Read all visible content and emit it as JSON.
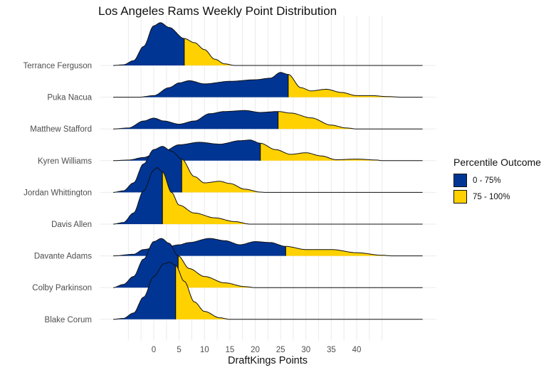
{
  "chart_data": {
    "type": "ridgeline",
    "title": "Los Angeles Rams Weekly Point Distribution",
    "xlabel": "DraftKings Points",
    "ylabel": "",
    "xlim": [
      -8,
      53
    ],
    "x_ticks": [
      0,
      5,
      10,
      15,
      20,
      25,
      30,
      35,
      40
    ],
    "x_tick_labels": [
      "0",
      "5",
      "10",
      "15",
      "20",
      "25",
      "30",
      "35",
      "40"
    ],
    "minor_grid_step": 2.5,
    "grid_range": [
      -5,
      45
    ],
    "grid": true,
    "legend": {
      "title": "Percentile Outcome",
      "position": "right",
      "entries": [
        {
          "label": "0 - 75%",
          "color": "#003594"
        },
        {
          "label": "75 - 100%",
          "color": "#FFD100"
        }
      ]
    },
    "colors": {
      "low": "#003594",
      "high": "#FFD100",
      "outline": "#111111",
      "grid": "#ebebeb"
    },
    "series": [
      {
        "name": "Terrance Ferguson",
        "p75": 6.0,
        "density": [
          [
            -8,
            0
          ],
          [
            -6,
            0.02
          ],
          [
            -4,
            0.15
          ],
          [
            -2,
            0.6
          ],
          [
            0,
            1.25
          ],
          [
            1.3,
            1.35
          ],
          [
            3,
            1.2
          ],
          [
            6,
            0.85
          ],
          [
            8,
            0.72
          ],
          [
            10,
            0.5
          ],
          [
            12,
            0.2
          ],
          [
            14,
            0.05
          ],
          [
            16,
            0
          ]
        ]
      },
      {
        "name": "Puka Nacua",
        "p75": 26.5,
        "density": [
          [
            -3,
            0
          ],
          [
            0,
            0.05
          ],
          [
            3,
            0.3
          ],
          [
            5,
            0.45
          ],
          [
            7,
            0.52
          ],
          [
            10,
            0.42
          ],
          [
            15,
            0.5
          ],
          [
            20,
            0.55
          ],
          [
            23,
            0.6
          ],
          [
            25,
            0.78
          ],
          [
            26.5,
            0.72
          ],
          [
            29,
            0.3
          ],
          [
            31,
            0.2
          ],
          [
            34,
            0.25
          ],
          [
            37,
            0.15
          ],
          [
            40,
            0.05
          ],
          [
            43,
            0.05
          ],
          [
            46,
            0.02
          ],
          [
            49,
            0
          ]
        ]
      },
      {
        "name": "Matthew Stafford",
        "p75": 24.5,
        "density": [
          [
            -8,
            0
          ],
          [
            -5,
            0.03
          ],
          [
            -2,
            0.25
          ],
          [
            0,
            0.34
          ],
          [
            2,
            0.25
          ],
          [
            5,
            0.15
          ],
          [
            8,
            0.25
          ],
          [
            11,
            0.48
          ],
          [
            14,
            0.55
          ],
          [
            18,
            0.58
          ],
          [
            21,
            0.52
          ],
          [
            24.5,
            0.55
          ],
          [
            27,
            0.5
          ],
          [
            31,
            0.35
          ],
          [
            35,
            0.12
          ],
          [
            38,
            0.03
          ],
          [
            40,
            0
          ]
        ]
      },
      {
        "name": "Kyren Williams",
        "p75": 21.0,
        "density": [
          [
            -8,
            0
          ],
          [
            -5,
            0.02
          ],
          [
            -2,
            0.1
          ],
          [
            0,
            0.2
          ],
          [
            2,
            0.3
          ],
          [
            5,
            0.5
          ],
          [
            9,
            0.58
          ],
          [
            13,
            0.52
          ],
          [
            17,
            0.63
          ],
          [
            19,
            0.65
          ],
          [
            21,
            0.55
          ],
          [
            24,
            0.35
          ],
          [
            27,
            0.2
          ],
          [
            30,
            0.25
          ],
          [
            33,
            0.15
          ],
          [
            36,
            0.03
          ],
          [
            40,
            0.05
          ],
          [
            44,
            0.02
          ],
          [
            45,
            0
          ]
        ]
      },
      {
        "name": "Jordan Whittington",
        "p75": 5.5,
        "density": [
          [
            -8,
            0
          ],
          [
            -6,
            0.05
          ],
          [
            -4,
            0.3
          ],
          [
            -2,
            0.9
          ],
          [
            0,
            1.35
          ],
          [
            1.7,
            1.45
          ],
          [
            3.5,
            1.3
          ],
          [
            5.5,
            1.05
          ],
          [
            8,
            0.5
          ],
          [
            10,
            0.3
          ],
          [
            13,
            0.35
          ],
          [
            15,
            0.28
          ],
          [
            18,
            0.1
          ],
          [
            21,
            0.01
          ],
          [
            22,
            0
          ]
        ]
      },
      {
        "name": "Davis Allen",
        "p75": 1.7,
        "density": [
          [
            -8,
            0
          ],
          [
            -6,
            0.05
          ],
          [
            -4,
            0.35
          ],
          [
            -2,
            1.05
          ],
          [
            0,
            1.7
          ],
          [
            0.6,
            1.78
          ],
          [
            1.7,
            1.65
          ],
          [
            3.5,
            1.0
          ],
          [
            5,
            0.6
          ],
          [
            8,
            0.35
          ],
          [
            12,
            0.2
          ],
          [
            16,
            0.08
          ],
          [
            19,
            0
          ]
        ]
      },
      {
        "name": "Davante Adams",
        "p75": 26.0,
        "density": [
          [
            -8,
            0
          ],
          [
            -4,
            0.05
          ],
          [
            -2,
            0.2
          ],
          [
            0,
            0.25
          ],
          [
            3,
            0.3
          ],
          [
            5,
            0.35
          ],
          [
            7,
            0.42
          ],
          [
            11,
            0.55
          ],
          [
            14,
            0.48
          ],
          [
            17,
            0.35
          ],
          [
            20,
            0.45
          ],
          [
            23,
            0.42
          ],
          [
            26,
            0.3
          ],
          [
            30,
            0.2
          ],
          [
            35,
            0.2
          ],
          [
            40,
            0.1
          ],
          [
            45,
            0.02
          ],
          [
            47,
            0
          ]
        ]
      },
      {
        "name": "Colby Parkinson",
        "p75": 4.8,
        "density": [
          [
            -8,
            0
          ],
          [
            -6,
            0.1
          ],
          [
            -4,
            0.35
          ],
          [
            -2,
            0.9
          ],
          [
            0,
            1.45
          ],
          [
            1.5,
            1.55
          ],
          [
            3,
            1.4
          ],
          [
            4.8,
            1.0
          ],
          [
            7,
            0.6
          ],
          [
            10,
            0.35
          ],
          [
            14,
            0.15
          ],
          [
            18,
            0.03
          ],
          [
            20,
            0
          ]
        ]
      },
      {
        "name": "Blake Corum",
        "p75": 4.3,
        "density": [
          [
            -8,
            0
          ],
          [
            -6,
            0.03
          ],
          [
            -4,
            0.2
          ],
          [
            -2,
            0.7
          ],
          [
            0,
            1.35
          ],
          [
            2,
            1.75
          ],
          [
            3.2,
            1.8
          ],
          [
            4.3,
            1.7
          ],
          [
            6,
            1.2
          ],
          [
            8,
            0.55
          ],
          [
            10,
            0.25
          ],
          [
            13,
            0.05
          ],
          [
            15,
            0
          ]
        ]
      }
    ]
  }
}
